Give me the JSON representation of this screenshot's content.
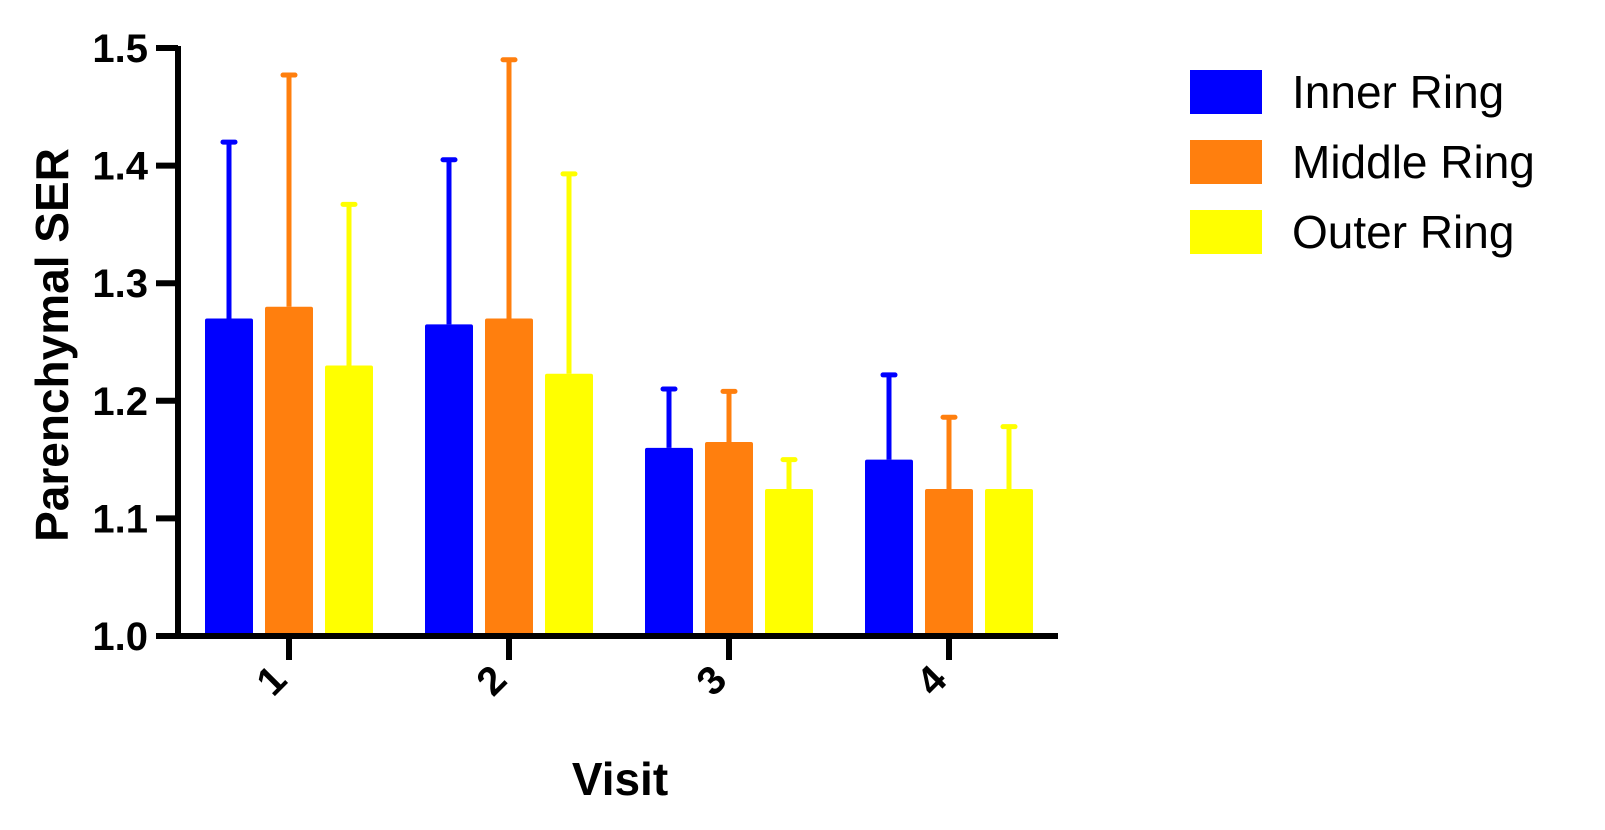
{
  "chart_data": {
    "type": "bar",
    "title": "",
    "xlabel": "Visit",
    "ylabel": "Parenchymal SER",
    "ylim": [
      1.0,
      1.5
    ],
    "yticks": [
      "1.0",
      "1.1",
      "1.2",
      "1.3",
      "1.4",
      "1.5"
    ],
    "categories": [
      "1",
      "2",
      "3",
      "4"
    ],
    "series": [
      {
        "name": "Inner Ring",
        "color": "#0000ff",
        "values": [
          1.27,
          1.265,
          1.16,
          1.15
        ],
        "error_upper": [
          1.42,
          1.405,
          1.21,
          1.222
        ]
      },
      {
        "name": "Middle Ring",
        "color": "#ff7f0e",
        "values": [
          1.28,
          1.27,
          1.165,
          1.125
        ],
        "error_upper": [
          1.477,
          1.49,
          1.208,
          1.186
        ]
      },
      {
        "name": "Outer Ring",
        "color": "#ffff00",
        "values": [
          1.23,
          1.223,
          1.125,
          1.125
        ],
        "error_upper": [
          1.367,
          1.393,
          1.15,
          1.178
        ]
      }
    ],
    "legend_position": "top-right",
    "grid": false
  }
}
